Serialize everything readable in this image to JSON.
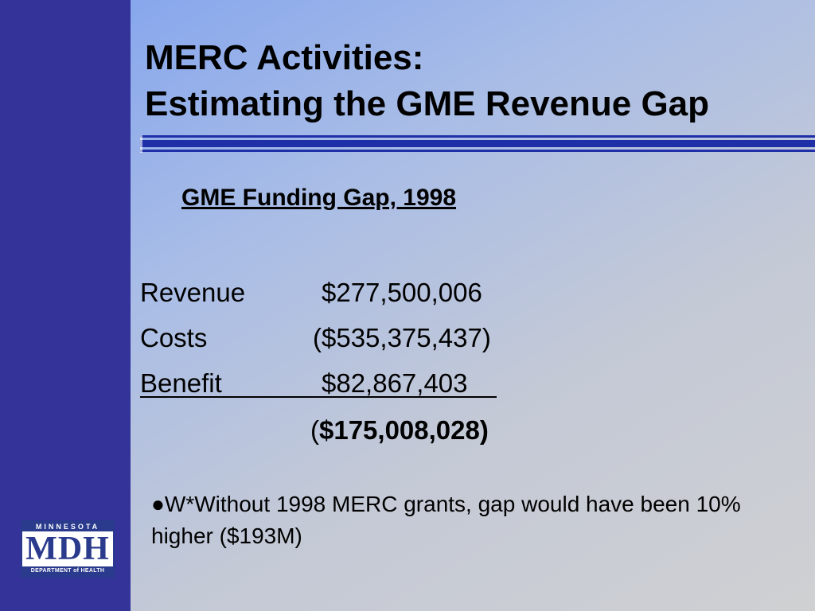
{
  "slide": {
    "title_line1": "MERC Activities:",
    "title_line2": "Estimating the GME Revenue Gap",
    "subtitle": "GME Funding Gap, 1998",
    "rows": [
      {
        "label": "Revenue",
        "amount": "$277,500,006"
      },
      {
        "label": "Costs",
        "amount": "($535,375,437)"
      },
      {
        "label": "Benefit",
        "amount": "$82,867,403"
      }
    ],
    "total": {
      "open": "(",
      "amount": "$175,008,028)"
    },
    "note": "●W*Without 1998 MERC grants, gap would have been 10% higher ($193M)"
  },
  "logo": {
    "top": "MINNESOTA",
    "main": "MDH",
    "bottom": "DEPARTMENT of HEALTH"
  },
  "colors": {
    "sidebar": "#333399",
    "rule": "#1f2fa8",
    "logo": "#2a3a8c"
  }
}
